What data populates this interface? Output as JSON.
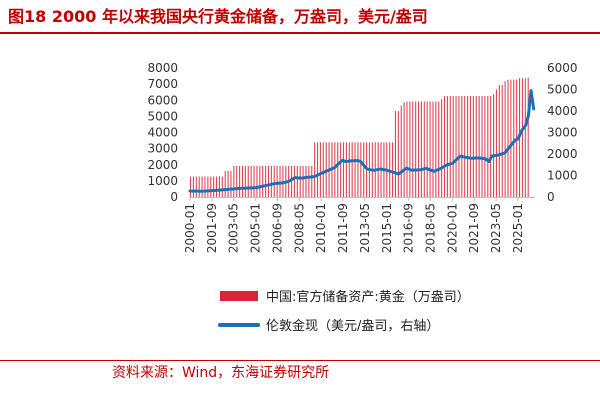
{
  "figure": {
    "title": "图18  2000 年以来我国央行黄金储备，万盎司，美元/盎司",
    "source": "资料来源：Wind，东海证券研究所"
  },
  "colors": {
    "bar": "#d9243a",
    "line": "#1f6fb5",
    "title": "#c00000"
  },
  "chart_data": {
    "type": "bar",
    "x_ticks": [
      "2000-01",
      "2001-09",
      "2003-05",
      "2005-01",
      "2006-09",
      "2008-05",
      "2010-01",
      "2011-09",
      "2013-05",
      "2015-01",
      "2016-09",
      "2018-05",
      "2020-01",
      "2021-09",
      "2023-05",
      "2025-01"
    ],
    "y_left": {
      "ylim": [
        0,
        8000
      ],
      "ticks": [
        "8000",
        "7000",
        "6000",
        "5000",
        "4000",
        "3000",
        "2000",
        "1000",
        "0"
      ]
    },
    "y_right": {
      "ylim": [
        0,
        6000
      ],
      "ticks": [
        "6000",
        "5000",
        "4000",
        "3000",
        "2000",
        "1000",
        "0"
      ]
    },
    "series": [
      {
        "name": "中国:官方储备资产:黄金（万盎司）",
        "kind": "bar",
        "axis": "left",
        "x": [
          2000.0,
          2001.9,
          2002.6,
          2003.2,
          2006.0,
          2008.4,
          2009.0,
          2009.3,
          2012.0,
          2015.0,
          2015.5,
          2015.9,
          2016.2,
          2016.5,
          2016.8,
          2018.0,
          2019.0,
          2019.3,
          2019.6,
          2019.9,
          2021.0,
          2022.9,
          2023.2,
          2023.5,
          2023.8,
          2024.1,
          2024.4,
          2025.0,
          2025.6
        ],
        "values": [
          1267,
          1267,
          1608,
          1929,
          1929,
          1929,
          1929,
          3389,
          3389,
          3389,
          5332,
          5666,
          5874,
          5920,
          5924,
          5924,
          6062,
          6264,
          6264,
          6264,
          6264,
          6367,
          6676,
          6948,
          7187,
          7274,
          7280,
          7370,
          7400
        ]
      },
      {
        "name": "伦敦金现（美元/盎司，右轴）",
        "kind": "line",
        "axis": "right",
        "x": [
          2000.0,
          2001.0,
          2002.0,
          2003.0,
          2004.0,
          2005.0,
          2006.0,
          2006.5,
          2007.0,
          2007.5,
          2008.0,
          2008.5,
          2009.0,
          2009.5,
          2010.0,
          2010.5,
          2011.0,
          2011.6,
          2011.9,
          2012.3,
          2012.8,
          2013.0,
          2013.5,
          2014.0,
          2014.5,
          2015.0,
          2015.9,
          2016.5,
          2016.9,
          2017.5,
          2018.0,
          2018.6,
          2019.0,
          2019.6,
          2020.0,
          2020.6,
          2021.0,
          2021.5,
          2022.0,
          2022.5,
          2022.8,
          2023.0,
          2023.5,
          2024.0,
          2024.4,
          2024.8,
          2025.0,
          2025.3,
          2025.6,
          2025.8,
          2026.0,
          2026.2
        ],
        "values": [
          280,
          270,
          310,
          360,
          410,
          430,
          560,
          630,
          650,
          720,
          900,
          880,
          920,
          950,
          1100,
          1230,
          1360,
          1700,
          1650,
          1680,
          1700,
          1650,
          1300,
          1240,
          1300,
          1250,
          1070,
          1340,
          1250,
          1260,
          1330,
          1200,
          1290,
          1500,
          1560,
          1900,
          1850,
          1800,
          1820,
          1780,
          1650,
          1900,
          1950,
          2050,
          2350,
          2650,
          2700,
          3100,
          3350,
          3800,
          4950,
          4100
        ]
      }
    ]
  }
}
